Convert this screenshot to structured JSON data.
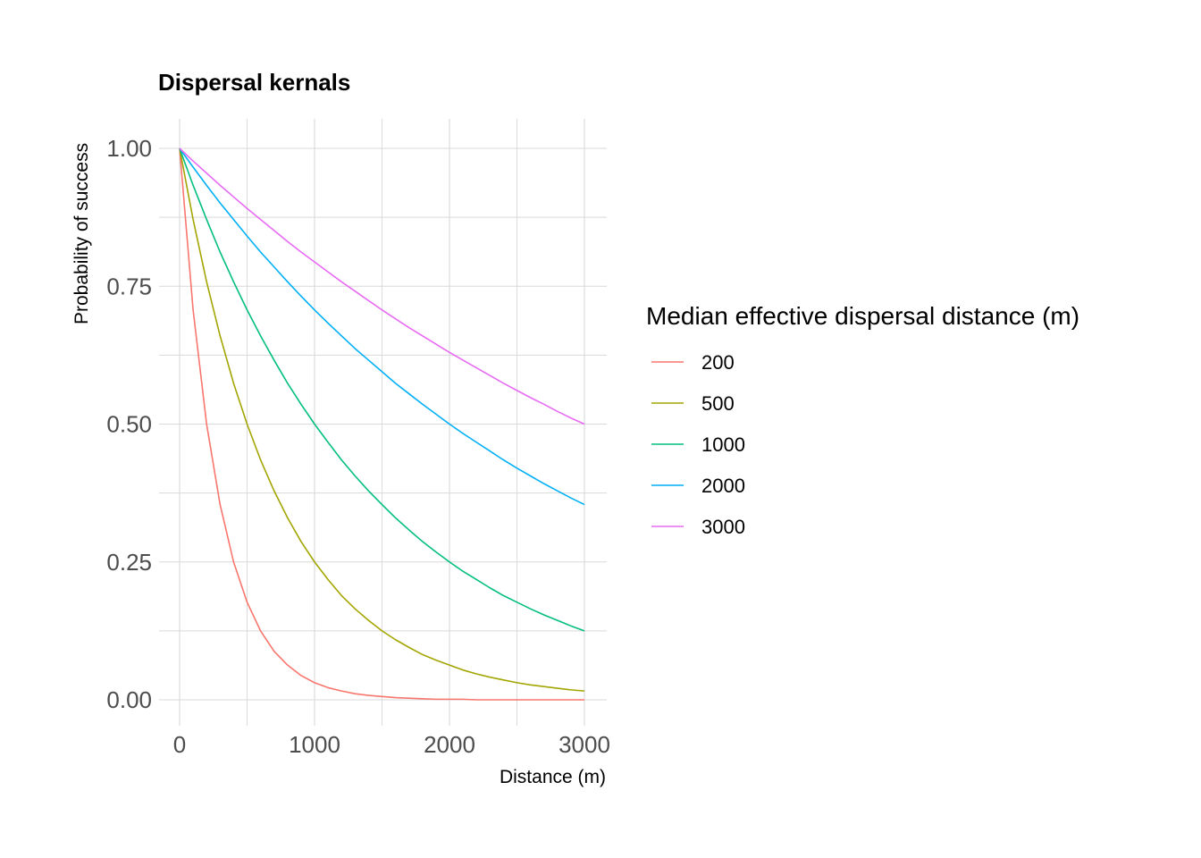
{
  "chart_data": {
    "type": "line",
    "title": "Dispersal kernals",
    "xlabel": "Distance (m)",
    "ylabel": "Probability of success",
    "xlim": [
      0,
      3000
    ],
    "ylim": [
      0,
      1
    ],
    "xticks": [
      0,
      1000,
      2000,
      3000
    ],
    "xtick_labels": [
      "0",
      "1000",
      "2000",
      "3000"
    ],
    "yticks": [
      0,
      0.25,
      0.5,
      0.75,
      1
    ],
    "ytick_labels": [
      "0.00",
      "0.25",
      "0.50",
      "0.75",
      "1.00"
    ],
    "grid": true,
    "legend": {
      "title": "Median effective dispersal distance (m)",
      "position": "right"
    },
    "x": [
      0,
      100,
      200,
      300,
      400,
      500,
      600,
      700,
      800,
      900,
      1000,
      1100,
      1200,
      1300,
      1400,
      1500,
      1600,
      1700,
      1800,
      1900,
      2000,
      2100,
      2200,
      2300,
      2400,
      2500,
      2600,
      2700,
      2800,
      2900,
      3000
    ],
    "series": [
      {
        "name": "200",
        "color": "#F8766D",
        "values": [
          1.0,
          0.707,
          0.5,
          0.354,
          0.25,
          0.177,
          0.125,
          0.088,
          0.063,
          0.044,
          0.031,
          0.022,
          0.016,
          0.011,
          0.008,
          0.006,
          0.004,
          0.003,
          0.002,
          0.001,
          0.001,
          0.001,
          0.0,
          0.0,
          0.0,
          0.0,
          0.0,
          0.0,
          0.0,
          0.0,
          0.0
        ]
      },
      {
        "name": "500",
        "color": "#A3A500",
        "values": [
          1.0,
          0.871,
          0.758,
          0.66,
          0.574,
          0.5,
          0.435,
          0.379,
          0.33,
          0.287,
          0.25,
          0.218,
          0.189,
          0.165,
          0.144,
          0.125,
          0.109,
          0.095,
          0.082,
          0.072,
          0.063,
          0.054,
          0.047,
          0.041,
          0.036,
          0.031,
          0.027,
          0.024,
          0.021,
          0.018,
          0.016
        ]
      },
      {
        "name": "1000",
        "color": "#00BF7D",
        "values": [
          1.0,
          0.933,
          0.871,
          0.812,
          0.758,
          0.707,
          0.66,
          0.616,
          0.574,
          0.536,
          0.5,
          0.467,
          0.435,
          0.406,
          0.379,
          0.354,
          0.33,
          0.308,
          0.287,
          0.268,
          0.25,
          0.233,
          0.218,
          0.203,
          0.189,
          0.177,
          0.165,
          0.154,
          0.144,
          0.134,
          0.125
        ]
      },
      {
        "name": "2000",
        "color": "#00B0F6",
        "values": [
          1.0,
          0.966,
          0.933,
          0.901,
          0.871,
          0.841,
          0.812,
          0.785,
          0.758,
          0.732,
          0.707,
          0.683,
          0.66,
          0.637,
          0.616,
          0.595,
          0.574,
          0.555,
          0.536,
          0.518,
          0.5,
          0.483,
          0.467,
          0.451,
          0.435,
          0.42,
          0.406,
          0.392,
          0.379,
          0.366,
          0.354
        ]
      },
      {
        "name": "3000",
        "color": "#E76BF3",
        "values": [
          1.0,
          0.977,
          0.955,
          0.933,
          0.912,
          0.891,
          0.871,
          0.851,
          0.831,
          0.812,
          0.794,
          0.776,
          0.758,
          0.741,
          0.724,
          0.707,
          0.691,
          0.675,
          0.66,
          0.645,
          0.63,
          0.616,
          0.602,
          0.588,
          0.574,
          0.561,
          0.548,
          0.536,
          0.523,
          0.511,
          0.5
        ]
      }
    ]
  }
}
